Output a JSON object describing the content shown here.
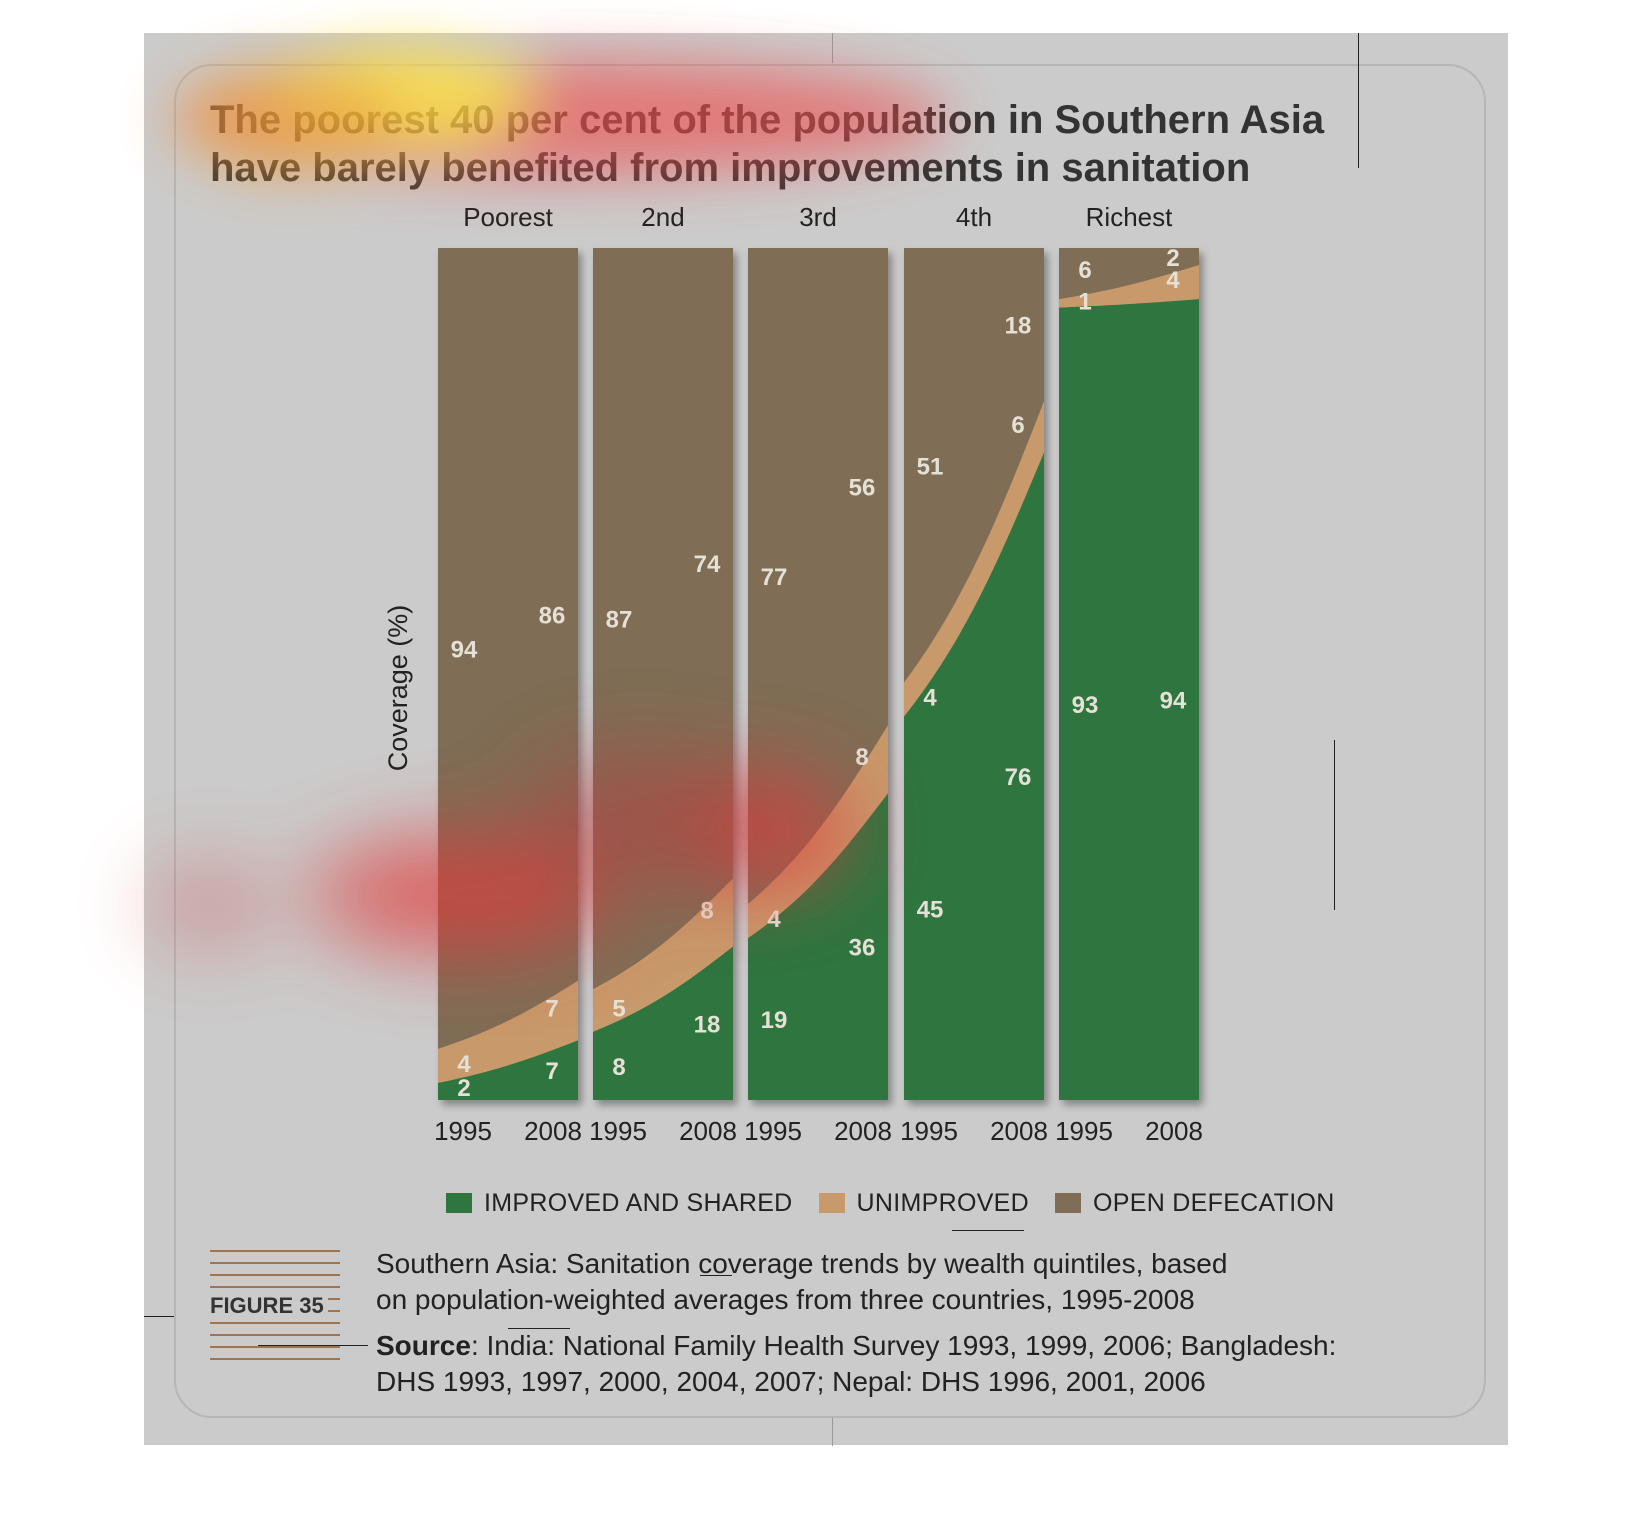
{
  "title": {
    "line1": "The poorest 40 per cent of the population in Southern Asia",
    "line2": "have barely benefited from improvements in sanitation"
  },
  "legend": [
    {
      "label": "IMPROVED AND SHARED",
      "color": "#2e7540"
    },
    {
      "label": "UNIMPROVED",
      "color": "#c8996a"
    },
    {
      "label": "OPEN DEFECATION",
      "color": "#7f6d55"
    }
  ],
  "figure": {
    "label": "FIGURE 35",
    "caption_line1": "Southern Asia: Sanitation coverage trends by wealth quintiles, based",
    "caption_line2": "on population-weighted averages from three countries, 1995-2008",
    "source_key": "Source",
    "source_line1": ": India: National Family Health Survey 1993, 1999, 2006; Bangladesh:",
    "source_line2": "DHS 1993, 1997, 2000, 2004, 2007; Nepal: DHS 1996, 2001, 2006"
  },
  "chart_data": {
    "type": "area",
    "stacked": true,
    "ylabel": "Coverage (%)",
    "ylim": [
      0,
      100
    ],
    "grid": false,
    "legend_position": "bottom",
    "panels": [
      {
        "name": "Poorest",
        "x": [
          "1995",
          "2008"
        ],
        "improved_and_shared": [
          2,
          7
        ],
        "unimproved": [
          4,
          7
        ],
        "open_defecation": [
          94,
          86
        ]
      },
      {
        "name": "2nd",
        "x": [
          "1995",
          "2008"
        ],
        "improved_and_shared": [
          8,
          18
        ],
        "unimproved": [
          5,
          8
        ],
        "open_defecation": [
          87,
          74
        ]
      },
      {
        "name": "3rd",
        "x": [
          "1995",
          "2008"
        ],
        "improved_and_shared": [
          19,
          36
        ],
        "unimproved": [
          4,
          8
        ],
        "open_defecation": [
          77,
          56
        ]
      },
      {
        "name": "4th",
        "x": [
          "1995",
          "2008"
        ],
        "improved_and_shared": [
          45,
          76
        ],
        "unimproved": [
          4,
          6
        ],
        "open_defecation": [
          51,
          18
        ]
      },
      {
        "name": "Richest",
        "x": [
          "1995",
          "2008"
        ],
        "improved_and_shared": [
          93,
          94
        ],
        "unimproved": [
          1,
          4
        ],
        "open_defecation": [
          6,
          2
        ]
      }
    ],
    "colors": {
      "improved_and_shared": "#2e7540",
      "unimproved": "#c8996a",
      "open_defecation": "#7f6d55",
      "label_text": "#e6e1d6"
    }
  }
}
